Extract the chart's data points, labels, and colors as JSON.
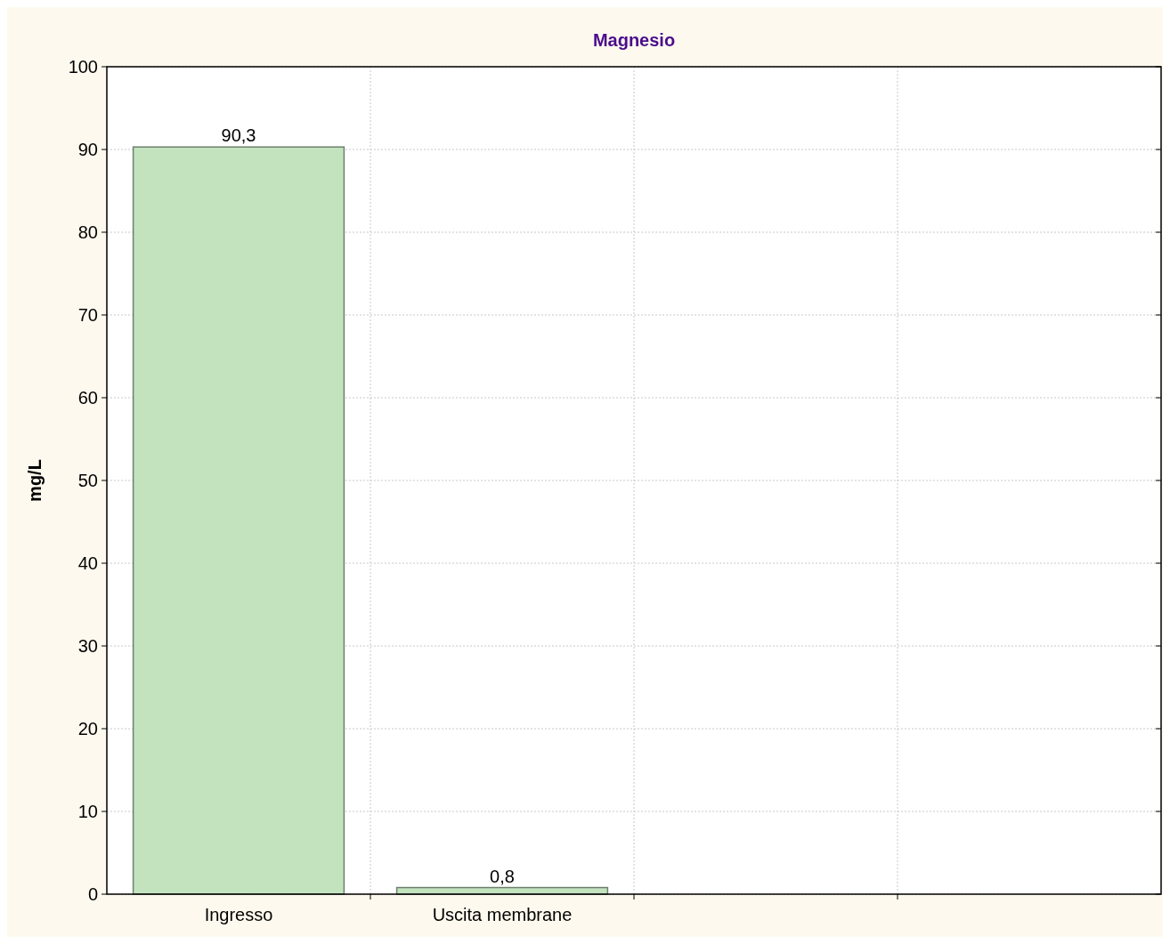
{
  "chart_data": {
    "type": "bar",
    "title": "Magnesio",
    "ylabel": "mg/L",
    "categories": [
      "Ingresso",
      "Uscita membrane",
      null,
      null
    ],
    "values": [
      90.3,
      0.8,
      null,
      null
    ],
    "value_labels": [
      "90,3",
      "0,8",
      null,
      null
    ],
    "color": "#c3e3bf",
    "ylim": [
      0,
      100
    ],
    "yticks": [
      0,
      10,
      20,
      30,
      40,
      50,
      60,
      70,
      80,
      90,
      100
    ],
    "grid": true
  }
}
